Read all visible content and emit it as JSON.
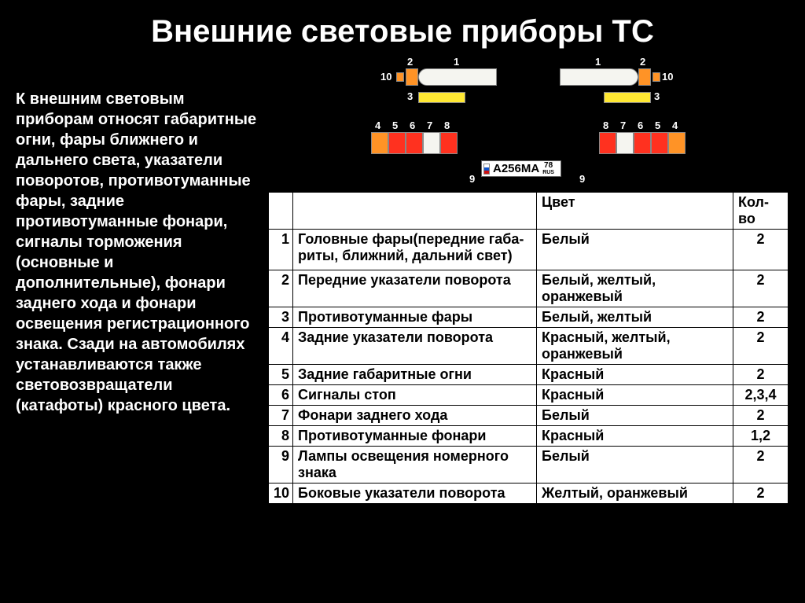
{
  "title": "Внешние световые приборы ТС",
  "description": "К внешним световым приборам относят габаритные огни, фары ближнего и дальнего света, указатели поворотов, противотуманные фары, задние противотуманные фонари, сигналы торможения (основные и дополнительные), фонари заднего хода и фонари освещения регистрационного знака. Сзади на автомобилях устанавливаются также световозвращатели (катафоты) красного цвета.",
  "diagram": {
    "labels_front": {
      "l10": "10",
      "l2": "2",
      "l1": "1",
      "r1": "1",
      "r2": "2",
      "r10": "10",
      "l3": "3",
      "r3": "3"
    },
    "labels_rear": {
      "g1": [
        "4",
        "5",
        "6",
        "7",
        "8"
      ],
      "g2": [
        "8",
        "7",
        "6",
        "5",
        "4"
      ],
      "l9": "9",
      "r9": "9"
    },
    "plate_text": "А256МА",
    "plate_region": "78",
    "plate_rus": "RUS",
    "colors": {
      "orange": "#ff9326",
      "yellow": "#ffe833",
      "white": "#f5f5f0",
      "red": "#ff311f"
    },
    "front_blocks": {
      "turn_width": 16,
      "turn_height": 22,
      "fog_width": 60,
      "fog_height": 14
    },
    "rear_block": {
      "width": 22,
      "height": 28
    },
    "rear_sequence_left": [
      "orange",
      "red",
      "red",
      "white",
      "red"
    ],
    "rear_sequence_right": [
      "red",
      "white",
      "red",
      "red",
      "orange"
    ]
  },
  "table": {
    "headers": {
      "num": "",
      "name": "",
      "color": "Цвет",
      "qty": "Кол-во"
    },
    "rows": [
      {
        "n": "1",
        "name": "Головные фары(передние габа-\nриты, ближний, дальний свет)",
        "color": "Белый",
        "qty": "2",
        "tall": true
      },
      {
        "n": "2",
        "name": "Передние указатели поворота",
        "color": "Белый, желтый, оранжевый",
        "qty": "2"
      },
      {
        "n": "3",
        "name": "Противотуманные фары",
        "color": "Белый, желтый",
        "qty": "2"
      },
      {
        "n": "4",
        "name": "Задние указатели поворота",
        "color": "Красный, желтый, оранжевый",
        "qty": "2"
      },
      {
        "n": "5",
        "name": "Задние габаритные огни",
        "color": "Красный",
        "qty": "2"
      },
      {
        "n": "6",
        "name": "Сигналы стоп",
        "color": "Красный",
        "qty": "2,3,4"
      },
      {
        "n": "7",
        "name": "Фонари заднего хода",
        "color": "Белый",
        "qty": "2"
      },
      {
        "n": "8",
        "name": "Противотуманные фонари",
        "color": "Красный",
        "qty": "1,2"
      },
      {
        "n": "9",
        "name": "Лампы освещения номерного знака",
        "color": "Белый",
        "qty": "2"
      },
      {
        "n": "10",
        "name": "Боковые указатели поворота",
        "color": "Желтый, оранжевый",
        "qty": "2"
      }
    ]
  }
}
